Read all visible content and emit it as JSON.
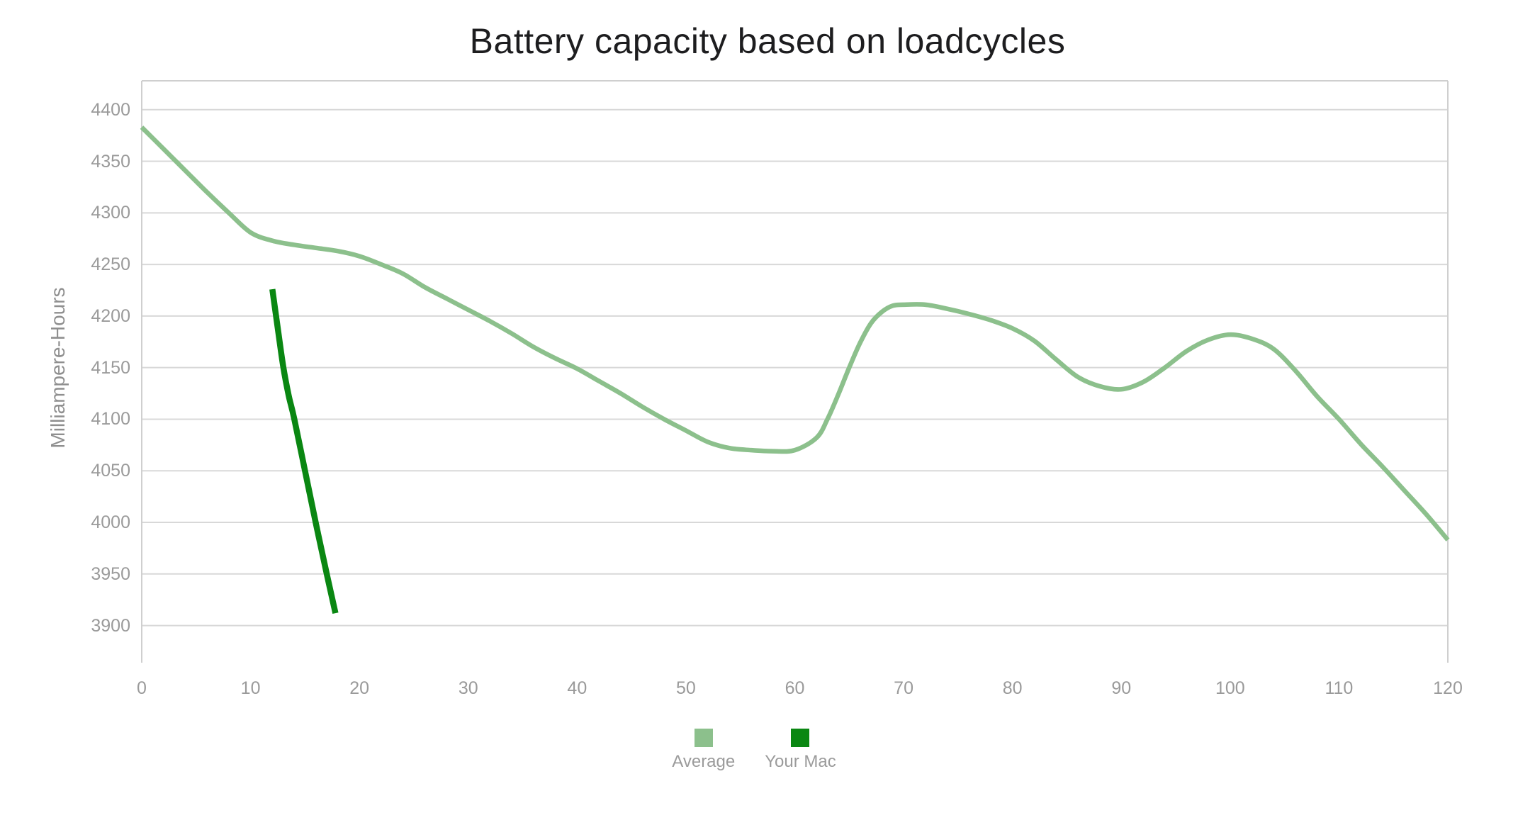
{
  "chart_data": {
    "type": "line",
    "title": "Battery capacity based on loadcycles",
    "xlabel": "",
    "ylabel": "Milliampere-Hours",
    "x_ticks": [
      0,
      10,
      20,
      30,
      40,
      50,
      60,
      70,
      80,
      90,
      100,
      110,
      120
    ],
    "y_ticks": [
      3900,
      3950,
      4000,
      4050,
      4100,
      4150,
      4200,
      4250,
      4300,
      4350,
      4400
    ],
    "xlim": [
      0,
      120
    ],
    "ylim": [
      3864,
      4428
    ],
    "grid": "horizontal-only",
    "legend_position": "bottom-center",
    "series": [
      {
        "name": "Average",
        "color": "#8cc08c",
        "line_width": 6.5,
        "points": [
          [
            0,
            4383
          ],
          [
            2,
            4362
          ],
          [
            4,
            4341
          ],
          [
            6,
            4320
          ],
          [
            8,
            4300
          ],
          [
            10,
            4281
          ],
          [
            12,
            4273
          ],
          [
            14,
            4269
          ],
          [
            16,
            4266
          ],
          [
            18,
            4263
          ],
          [
            20,
            4258
          ],
          [
            22,
            4250
          ],
          [
            24,
            4241
          ],
          [
            26,
            4228
          ],
          [
            28,
            4217
          ],
          [
            30,
            4206
          ],
          [
            32,
            4195
          ],
          [
            34,
            4183
          ],
          [
            36,
            4170
          ],
          [
            38,
            4159
          ],
          [
            40,
            4149
          ],
          [
            42,
            4137
          ],
          [
            44,
            4125
          ],
          [
            46,
            4112
          ],
          [
            48,
            4100
          ],
          [
            50,
            4089
          ],
          [
            52,
            4078
          ],
          [
            54,
            4072
          ],
          [
            56,
            4070
          ],
          [
            58,
            4069
          ],
          [
            60,
            4070
          ],
          [
            62,
            4082
          ],
          [
            63,
            4100
          ],
          [
            64,
            4124
          ],
          [
            65,
            4150
          ],
          [
            66,
            4174
          ],
          [
            67,
            4193
          ],
          [
            68,
            4204
          ],
          [
            69,
            4210
          ],
          [
            70,
            4211
          ],
          [
            72,
            4211
          ],
          [
            74,
            4207
          ],
          [
            76,
            4202
          ],
          [
            78,
            4196
          ],
          [
            80,
            4188
          ],
          [
            82,
            4176
          ],
          [
            84,
            4158
          ],
          [
            86,
            4141
          ],
          [
            88,
            4132
          ],
          [
            90,
            4129
          ],
          [
            92,
            4136
          ],
          [
            94,
            4150
          ],
          [
            96,
            4166
          ],
          [
            98,
            4177
          ],
          [
            100,
            4182
          ],
          [
            102,
            4178
          ],
          [
            104,
            4168
          ],
          [
            106,
            4147
          ],
          [
            108,
            4122
          ],
          [
            110,
            4100
          ],
          [
            112,
            4076
          ],
          [
            114,
            4054
          ],
          [
            116,
            4031
          ],
          [
            118,
            4008
          ],
          [
            120,
            3983
          ]
        ]
      },
      {
        "name": "Your Mac",
        "color": "#0a8712",
        "line_width": 8.5,
        "points": [
          [
            12,
            4226
          ],
          [
            12.5,
            4188
          ],
          [
            13,
            4151
          ],
          [
            13.5,
            4123
          ],
          [
            14,
            4101
          ],
          [
            15,
            4050
          ],
          [
            16,
            3999
          ],
          [
            17,
            3950
          ],
          [
            17.8,
            3912
          ]
        ]
      }
    ],
    "colors": {
      "grid_line": "#d8d8d8",
      "plot_border": "#cfcfcf",
      "tick_text": "#9a9a9a",
      "title_text": "#1d1d1f",
      "background": "#ffffff"
    }
  }
}
